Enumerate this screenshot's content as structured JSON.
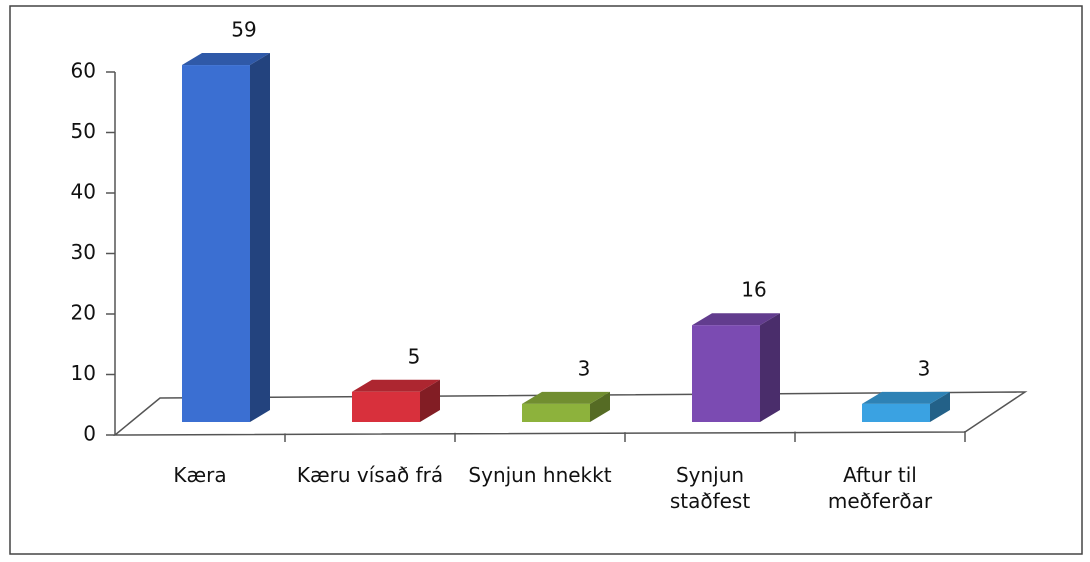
{
  "chart_data": {
    "type": "bar3d",
    "categories": [
      "Kæra",
      "Kæru vísað frá",
      "Synjun hnekkt",
      "Synjun staðfest",
      "Aftur til meðferðar"
    ],
    "values": [
      59,
      5,
      3,
      16,
      3
    ],
    "colors": [
      "#3b6fd2",
      "#d8303c",
      "#8db23c",
      "#7b4bb2",
      "#3aa2e2"
    ],
    "ylim": [
      0,
      60
    ],
    "yticks": [
      0,
      10,
      20,
      30,
      40,
      50,
      60
    ]
  }
}
